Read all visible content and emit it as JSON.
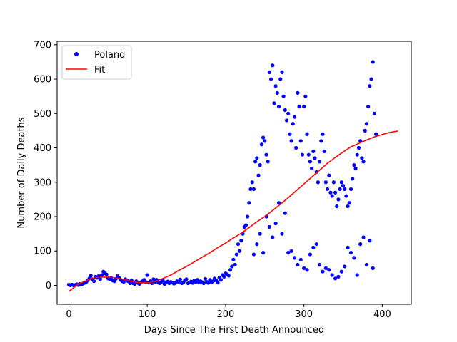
{
  "chart_data": {
    "type": "scatter",
    "xlabel": "Days Since The First Death Announced",
    "ylabel": "Number of Daily Deaths",
    "xlim": [
      -15,
      437
    ],
    "ylim": [
      -55,
      710
    ],
    "xticks": [
      0,
      100,
      200,
      300,
      400
    ],
    "yticks": [
      0,
      100,
      200,
      300,
      400,
      500,
      600,
      700
    ],
    "grid": false,
    "legend_position": "top-left",
    "series": [
      {
        "name": "Poland",
        "kind": "scatter",
        "color": "#0000ff",
        "points": [
          [
            0,
            2
          ],
          [
            2,
            0
          ],
          [
            4,
            2
          ],
          [
            6,
            0
          ],
          [
            8,
            1
          ],
          [
            10,
            3
          ],
          [
            12,
            1
          ],
          [
            14,
            4
          ],
          [
            16,
            2
          ],
          [
            18,
            5
          ],
          [
            20,
            7
          ],
          [
            22,
            9
          ],
          [
            24,
            14
          ],
          [
            26,
            20
          ],
          [
            28,
            28
          ],
          [
            30,
            18
          ],
          [
            32,
            12
          ],
          [
            34,
            25
          ],
          [
            36,
            22
          ],
          [
            38,
            27
          ],
          [
            40,
            18
          ],
          [
            42,
            30
          ],
          [
            44,
            40
          ],
          [
            46,
            35
          ],
          [
            48,
            32
          ],
          [
            50,
            20
          ],
          [
            52,
            18
          ],
          [
            54,
            22
          ],
          [
            56,
            14
          ],
          [
            58,
            12
          ],
          [
            60,
            19
          ],
          [
            62,
            27
          ],
          [
            64,
            22
          ],
          [
            66,
            16
          ],
          [
            68,
            12
          ],
          [
            70,
            10
          ],
          [
            72,
            18
          ],
          [
            74,
            14
          ],
          [
            76,
            12
          ],
          [
            78,
            6
          ],
          [
            80,
            14
          ],
          [
            82,
            6
          ],
          [
            84,
            4
          ],
          [
            86,
            12
          ],
          [
            88,
            7
          ],
          [
            90,
            4
          ],
          [
            92,
            9
          ],
          [
            94,
            12
          ],
          [
            96,
            16
          ],
          [
            98,
            10
          ],
          [
            100,
            30
          ],
          [
            102,
            8
          ],
          [
            104,
            12
          ],
          [
            106,
            6
          ],
          [
            108,
            18
          ],
          [
            110,
            10
          ],
          [
            112,
            16
          ],
          [
            114,
            8
          ],
          [
            116,
            6
          ],
          [
            118,
            10
          ],
          [
            120,
            14
          ],
          [
            122,
            4
          ],
          [
            124,
            9
          ],
          [
            126,
            11
          ],
          [
            128,
            6
          ],
          [
            130,
            10
          ],
          [
            132,
            8
          ],
          [
            134,
            5
          ],
          [
            136,
            7
          ],
          [
            138,
            12
          ],
          [
            140,
            10
          ],
          [
            142,
            17
          ],
          [
            144,
            6
          ],
          [
            146,
            8
          ],
          [
            148,
            14
          ],
          [
            150,
            18
          ],
          [
            152,
            6
          ],
          [
            154,
            9
          ],
          [
            156,
            11
          ],
          [
            158,
            7
          ],
          [
            160,
            14
          ],
          [
            162,
            10
          ],
          [
            164,
            16
          ],
          [
            166,
            8
          ],
          [
            168,
            12
          ],
          [
            170,
            9
          ],
          [
            172,
            6
          ],
          [
            174,
            19
          ],
          [
            176,
            10
          ],
          [
            178,
            7
          ],
          [
            180,
            16
          ],
          [
            182,
            9
          ],
          [
            184,
            12
          ],
          [
            186,
            20
          ],
          [
            188,
            14
          ],
          [
            190,
            8
          ],
          [
            192,
            22
          ],
          [
            194,
            16
          ],
          [
            196,
            30
          ],
          [
            198,
            25
          ],
          [
            200,
            35
          ],
          [
            202,
            32
          ],
          [
            204,
            28
          ],
          [
            206,
            45
          ],
          [
            208,
            55
          ],
          [
            210,
            75
          ],
          [
            212,
            60
          ],
          [
            214,
            90
          ],
          [
            216,
            120
          ],
          [
            218,
            100
          ],
          [
            220,
            130
          ],
          [
            222,
            150
          ],
          [
            224,
            170
          ],
          [
            226,
            175
          ],
          [
            228,
            200
          ],
          [
            230,
            240
          ],
          [
            232,
            280
          ],
          [
            234,
            300
          ],
          [
            236,
            280
          ],
          [
            238,
            360
          ],
          [
            240,
            370
          ],
          [
            242,
            320
          ],
          [
            244,
            350
          ],
          [
            246,
            410
          ],
          [
            248,
            430
          ],
          [
            250,
            420
          ],
          [
            252,
            380
          ],
          [
            254,
            360
          ],
          [
            256,
            620
          ],
          [
            258,
            600
          ],
          [
            260,
            640
          ],
          [
            262,
            530
          ],
          [
            264,
            580
          ],
          [
            266,
            560
          ],
          [
            268,
            520
          ],
          [
            270,
            600
          ],
          [
            272,
            620
          ],
          [
            274,
            550
          ],
          [
            276,
            510
          ],
          [
            278,
            480
          ],
          [
            280,
            500
          ],
          [
            282,
            440
          ],
          [
            284,
            420
          ],
          [
            286,
            470
          ],
          [
            288,
            490
          ],
          [
            290,
            400
          ],
          [
            292,
            560
          ],
          [
            294,
            520
          ],
          [
            296,
            420
          ],
          [
            298,
            380
          ],
          [
            300,
            520
          ],
          [
            302,
            550
          ],
          [
            304,
            440
          ],
          [
            306,
            380
          ],
          [
            308,
            360
          ],
          [
            310,
            340
          ],
          [
            312,
            390
          ],
          [
            314,
            370
          ],
          [
            316,
            330
          ],
          [
            318,
            300
          ],
          [
            320,
            360
          ],
          [
            322,
            420
          ],
          [
            324,
            440
          ],
          [
            326,
            390
          ],
          [
            328,
            300
          ],
          [
            330,
            280
          ],
          [
            332,
            320
          ],
          [
            334,
            270
          ],
          [
            336,
            260
          ],
          [
            338,
            300
          ],
          [
            340,
            270
          ],
          [
            342,
            230
          ],
          [
            344,
            250
          ],
          [
            346,
            280
          ],
          [
            348,
            300
          ],
          [
            350,
            290
          ],
          [
            352,
            280
          ],
          [
            354,
            260
          ],
          [
            356,
            230
          ],
          [
            358,
            240
          ],
          [
            360,
            280
          ],
          [
            362,
            310
          ],
          [
            364,
            350
          ],
          [
            366,
            340
          ],
          [
            368,
            380
          ],
          [
            370,
            400
          ],
          [
            372,
            420
          ],
          [
            374,
            370
          ],
          [
            376,
            360
          ],
          [
            378,
            450
          ],
          [
            380,
            470
          ],
          [
            382,
            520
          ],
          [
            384,
            580
          ],
          [
            386,
            600
          ],
          [
            388,
            650
          ],
          [
            390,
            500
          ],
          [
            392,
            440
          ],
          [
            236,
            90
          ],
          [
            240,
            120
          ],
          [
            244,
            150
          ],
          [
            248,
            95
          ],
          [
            252,
            200
          ],
          [
            256,
            170
          ],
          [
            260,
            140
          ],
          [
            264,
            180
          ],
          [
            268,
            240
          ],
          [
            272,
            150
          ],
          [
            276,
            210
          ],
          [
            280,
            95
          ],
          [
            284,
            100
          ],
          [
            288,
            80
          ],
          [
            292,
            60
          ],
          [
            296,
            75
          ],
          [
            300,
            50
          ],
          [
            304,
            45
          ],
          [
            308,
            90
          ],
          [
            312,
            110
          ],
          [
            316,
            120
          ],
          [
            320,
            60
          ],
          [
            324,
            40
          ],
          [
            328,
            50
          ],
          [
            332,
            45
          ],
          [
            336,
            30
          ],
          [
            340,
            20
          ],
          [
            344,
            25
          ],
          [
            348,
            40
          ],
          [
            352,
            55
          ],
          [
            356,
            110
          ],
          [
            360,
            95
          ],
          [
            364,
            80
          ],
          [
            368,
            30
          ],
          [
            372,
            120
          ],
          [
            376,
            140
          ],
          [
            380,
            60
          ],
          [
            384,
            130
          ],
          [
            388,
            50
          ]
        ]
      },
      {
        "name": "Fit",
        "kind": "line",
        "color": "#ff0000",
        "points": [
          [
            0,
            -18
          ],
          [
            10,
            0
          ],
          [
            20,
            12
          ],
          [
            30,
            20
          ],
          [
            40,
            24
          ],
          [
            50,
            24
          ],
          [
            60,
            22
          ],
          [
            70,
            17
          ],
          [
            80,
            12
          ],
          [
            90,
            8
          ],
          [
            100,
            7
          ],
          [
            110,
            11
          ],
          [
            120,
            20
          ],
          [
            130,
            30
          ],
          [
            140,
            43
          ],
          [
            150,
            55
          ],
          [
            160,
            68
          ],
          [
            170,
            82
          ],
          [
            180,
            95
          ],
          [
            190,
            110
          ],
          [
            200,
            123
          ],
          [
            210,
            138
          ],
          [
            220,
            152
          ],
          [
            230,
            168
          ],
          [
            240,
            185
          ],
          [
            250,
            200
          ],
          [
            260,
            218
          ],
          [
            270,
            236
          ],
          [
            280,
            255
          ],
          [
            290,
            275
          ],
          [
            300,
            295
          ],
          [
            310,
            315
          ],
          [
            320,
            335
          ],
          [
            330,
            355
          ],
          [
            340,
            372
          ],
          [
            350,
            388
          ],
          [
            360,
            403
          ],
          [
            370,
            413
          ],
          [
            380,
            423
          ],
          [
            390,
            432
          ],
          [
            400,
            439
          ],
          [
            410,
            445
          ],
          [
            420,
            449
          ]
        ]
      }
    ]
  }
}
